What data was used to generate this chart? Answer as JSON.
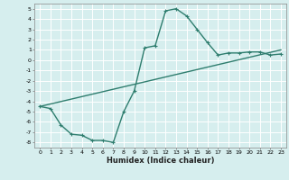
{
  "title": "",
  "xlabel": "Humidex (Indice chaleur)",
  "bg_color": "#d6eeee",
  "grid_color": "#ffffff",
  "line_color": "#2e7d6e",
  "xlim": [
    -0.5,
    23.5
  ],
  "ylim": [
    -8.5,
    5.5
  ],
  "xticks": [
    0,
    1,
    2,
    3,
    4,
    5,
    6,
    7,
    8,
    9,
    10,
    11,
    12,
    13,
    14,
    15,
    16,
    17,
    18,
    19,
    20,
    21,
    22,
    23
  ],
  "yticks": [
    -8,
    -7,
    -6,
    -5,
    -4,
    -3,
    -2,
    -1,
    0,
    1,
    2,
    3,
    4,
    5
  ],
  "curve1_x": [
    0,
    1,
    2,
    3,
    4,
    5,
    6,
    7,
    8,
    9,
    10,
    11,
    12,
    13,
    14,
    15,
    16,
    17,
    18,
    19,
    20,
    21,
    22,
    23
  ],
  "curve1_y": [
    -4.5,
    -4.7,
    -6.3,
    -7.2,
    -7.3,
    -7.8,
    -7.8,
    -8.0,
    -5.0,
    -3.0,
    1.2,
    1.4,
    4.8,
    5.0,
    4.3,
    3.0,
    1.7,
    0.5,
    0.7,
    0.7,
    0.8,
    0.8,
    0.5,
    0.6
  ],
  "curve2_x": [
    0,
    23
  ],
  "curve2_y": [
    -4.5,
    1.0
  ],
  "markersize": 3.5,
  "linewidth": 1.0,
  "xlabel_fontsize": 6.0,
  "tick_fontsize": 4.5
}
